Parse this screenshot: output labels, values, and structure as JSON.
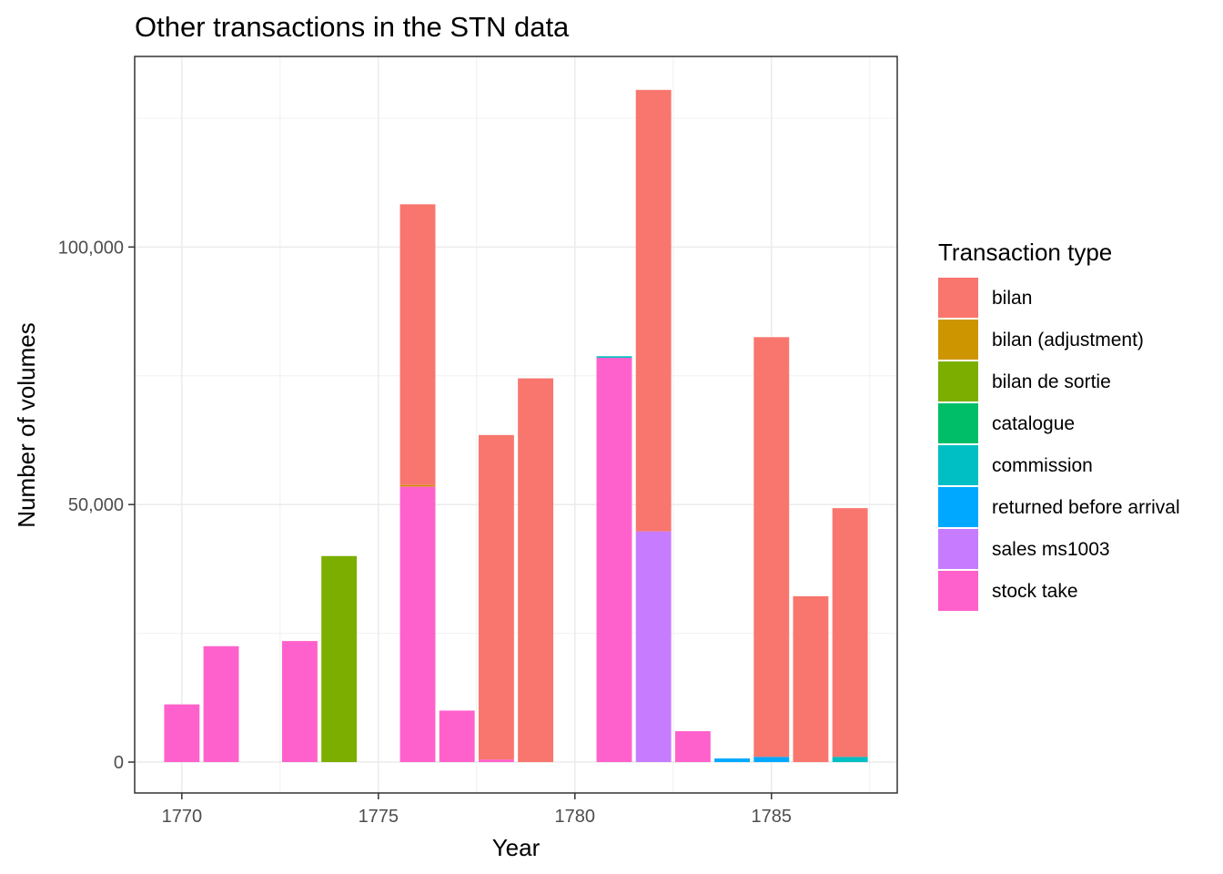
{
  "chart_data": {
    "type": "bar",
    "stacked": true,
    "title": "Other transactions in the STN data",
    "xlabel": "Year",
    "ylabel": "Number of volumes",
    "xlim": [
      1768.8,
      1788.2
    ],
    "ylim": [
      -6000,
      137000
    ],
    "x_ticks": [
      1770,
      1775,
      1780,
      1785
    ],
    "x_tick_labels": [
      "1770",
      "1775",
      "1780",
      "1785"
    ],
    "y_ticks": [
      0,
      50000,
      100000
    ],
    "y_tick_labels": [
      "0",
      "50,000",
      "100,000"
    ],
    "y_minor_ticks": [
      25000,
      75000,
      125000
    ],
    "grid": true,
    "legend_position": "right",
    "legend": {
      "title": "Transaction type",
      "entries": [
        {
          "name": "bilan",
          "color": "#F8766D"
        },
        {
          "name": "bilan (adjustment)",
          "color": "#CD9600"
        },
        {
          "name": "bilan de sortie",
          "color": "#7CAE00"
        },
        {
          "name": "catalogue",
          "color": "#00BE67"
        },
        {
          "name": "commission",
          "color": "#00BFC4"
        },
        {
          "name": "returned before arrival",
          "color": "#00A9FF"
        },
        {
          "name": "sales ms1003",
          "color": "#C77CFF"
        },
        {
          "name": "stock take",
          "color": "#FF61CC"
        }
      ]
    },
    "bars": [
      {
        "x": 1770,
        "segments": [
          {
            "type": "stock take",
            "value": 11200
          }
        ]
      },
      {
        "x": 1771,
        "segments": [
          {
            "type": "stock take",
            "value": 22500
          }
        ]
      },
      {
        "x": 1773,
        "segments": [
          {
            "type": "stock take",
            "value": 23500
          }
        ]
      },
      {
        "x": 1774,
        "segments": [
          {
            "type": "bilan de sortie",
            "value": 40000
          }
        ]
      },
      {
        "x": 1776,
        "segments": [
          {
            "type": "stock take",
            "value": 53500
          },
          {
            "type": "bilan (adjustment)",
            "value": 300
          },
          {
            "type": "bilan",
            "value": 54500
          }
        ]
      },
      {
        "x": 1777,
        "segments": [
          {
            "type": "stock take",
            "value": 10000
          }
        ]
      },
      {
        "x": 1778,
        "segments": [
          {
            "type": "stock take",
            "value": 500
          },
          {
            "type": "bilan",
            "value": 63000
          }
        ]
      },
      {
        "x": 1779,
        "segments": [
          {
            "type": "bilan",
            "value": 74500
          }
        ]
      },
      {
        "x": 1781,
        "segments": [
          {
            "type": "stock take",
            "value": 78500
          },
          {
            "type": "commission",
            "value": 300
          }
        ]
      },
      {
        "x": 1782,
        "segments": [
          {
            "type": "sales ms1003",
            "value": 44800
          },
          {
            "type": "bilan",
            "value": 85700
          }
        ]
      },
      {
        "x": 1783,
        "segments": [
          {
            "type": "stock take",
            "value": 6000
          }
        ]
      },
      {
        "x": 1784,
        "segments": [
          {
            "type": "returned before arrival",
            "value": 700
          }
        ]
      },
      {
        "x": 1785,
        "segments": [
          {
            "type": "returned before arrival",
            "value": 1000
          },
          {
            "type": "bilan",
            "value": 81500
          }
        ]
      },
      {
        "x": 1786,
        "segments": [
          {
            "type": "bilan",
            "value": 32200
          }
        ]
      },
      {
        "x": 1787,
        "segments": [
          {
            "type": "commission",
            "value": 1000
          },
          {
            "type": "bilan",
            "value": 48300
          }
        ]
      }
    ]
  }
}
